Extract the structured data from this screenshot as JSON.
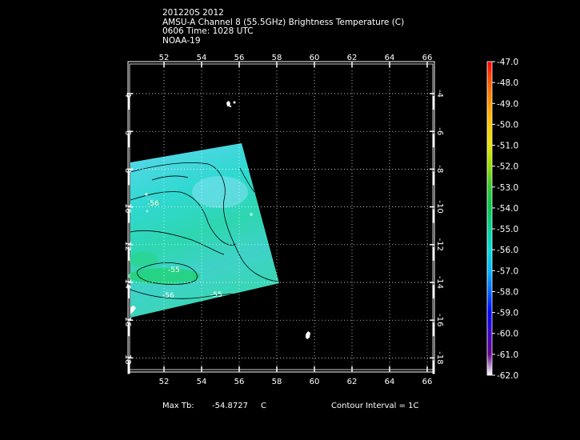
{
  "header": {
    "line1": "201220S 2012",
    "line2": "AMSU-A Channel 8 (55.5GHz) Brightness Temperature (C)",
    "line3": "0606 Time: 1028 UTC",
    "line4": "NOAA-19"
  },
  "map": {
    "lon_ticks": [
      "52",
      "54",
      "56",
      "58",
      "60",
      "62",
      "64",
      "66"
    ],
    "lat_ticks": [
      "-4",
      "-6",
      "-8",
      "-10",
      "-12",
      "-14",
      "-16",
      "-18"
    ],
    "contour_labels": [
      "-56",
      "-55",
      "-56",
      "-55"
    ]
  },
  "colorbar": {
    "labels": [
      "-47.0",
      "-48.0",
      "-49.0",
      "-50.0",
      "-51.0",
      "-52.0",
      "-53.0",
      "-54.0",
      "-55.0",
      "-56.0",
      "-57.0",
      "-58.0",
      "-59.0",
      "-60.0",
      "-61.0",
      "-62.0"
    ],
    "colors": [
      "#ff0000",
      "#ff5a00",
      "#ff9600",
      "#ffc800",
      "#e6e600",
      "#96dc00",
      "#32c832",
      "#00c850",
      "#00d296",
      "#00dcdc",
      "#00b4ff",
      "#0064ff",
      "#0000ff",
      "#3c00c8",
      "#64008c",
      "#ffffff"
    ]
  },
  "footer": {
    "max_tb_label": "Max Tb:",
    "max_tb_value": "-54.8727",
    "max_tb_unit": "C",
    "contour_interval": "Contour Interval = 1C"
  }
}
